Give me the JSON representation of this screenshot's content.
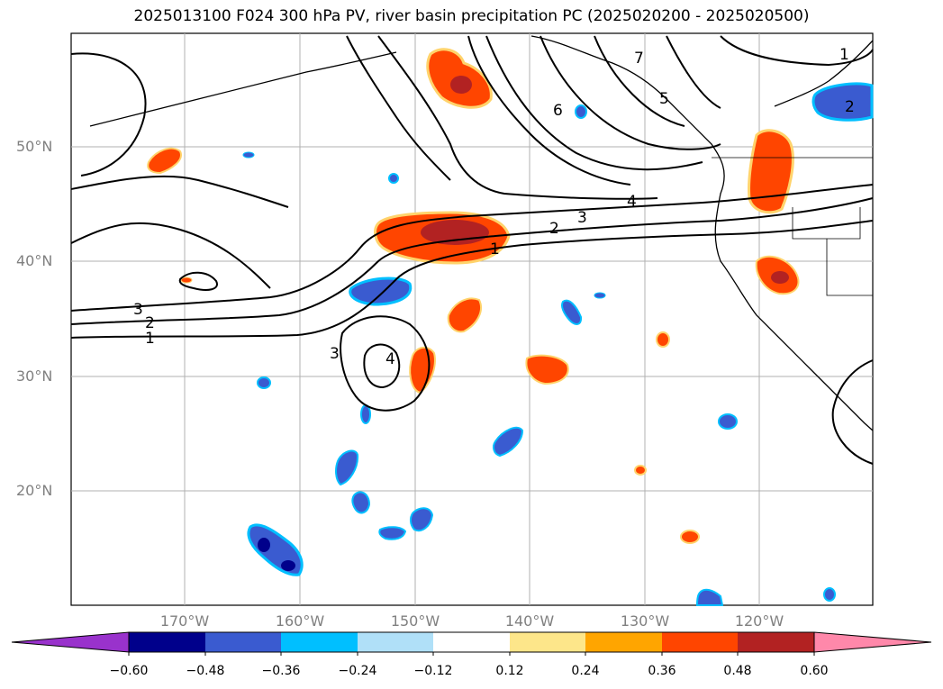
{
  "title": "2025013100 F024 300 hPa PV, river basin precipitation PC (2025020200 - 2025020500)",
  "lat_labels": [
    "50°N",
    "40°N",
    "30°N",
    "20°N"
  ],
  "lon_labels": [
    "170°W",
    "160°W",
    "150°W",
    "140°W",
    "130°W",
    "120°W"
  ],
  "contour_labels": [
    "1",
    "2",
    "3",
    "4",
    "5",
    "6",
    "7"
  ],
  "colorbar": {
    "ticks": [
      "−0.60",
      "−0.48",
      "−0.36",
      "−0.24",
      "−0.12",
      "0.12",
      "0.24",
      "0.36",
      "0.48",
      "0.60"
    ],
    "colors": [
      "#9932cc",
      "#00008b",
      "#3a5bd0",
      "#00bfff",
      "#b0e0f8",
      "#ffffff",
      "#fde68a",
      "#ffa500",
      "#ff4500",
      "#b22222",
      "#ff88aa"
    ]
  }
}
